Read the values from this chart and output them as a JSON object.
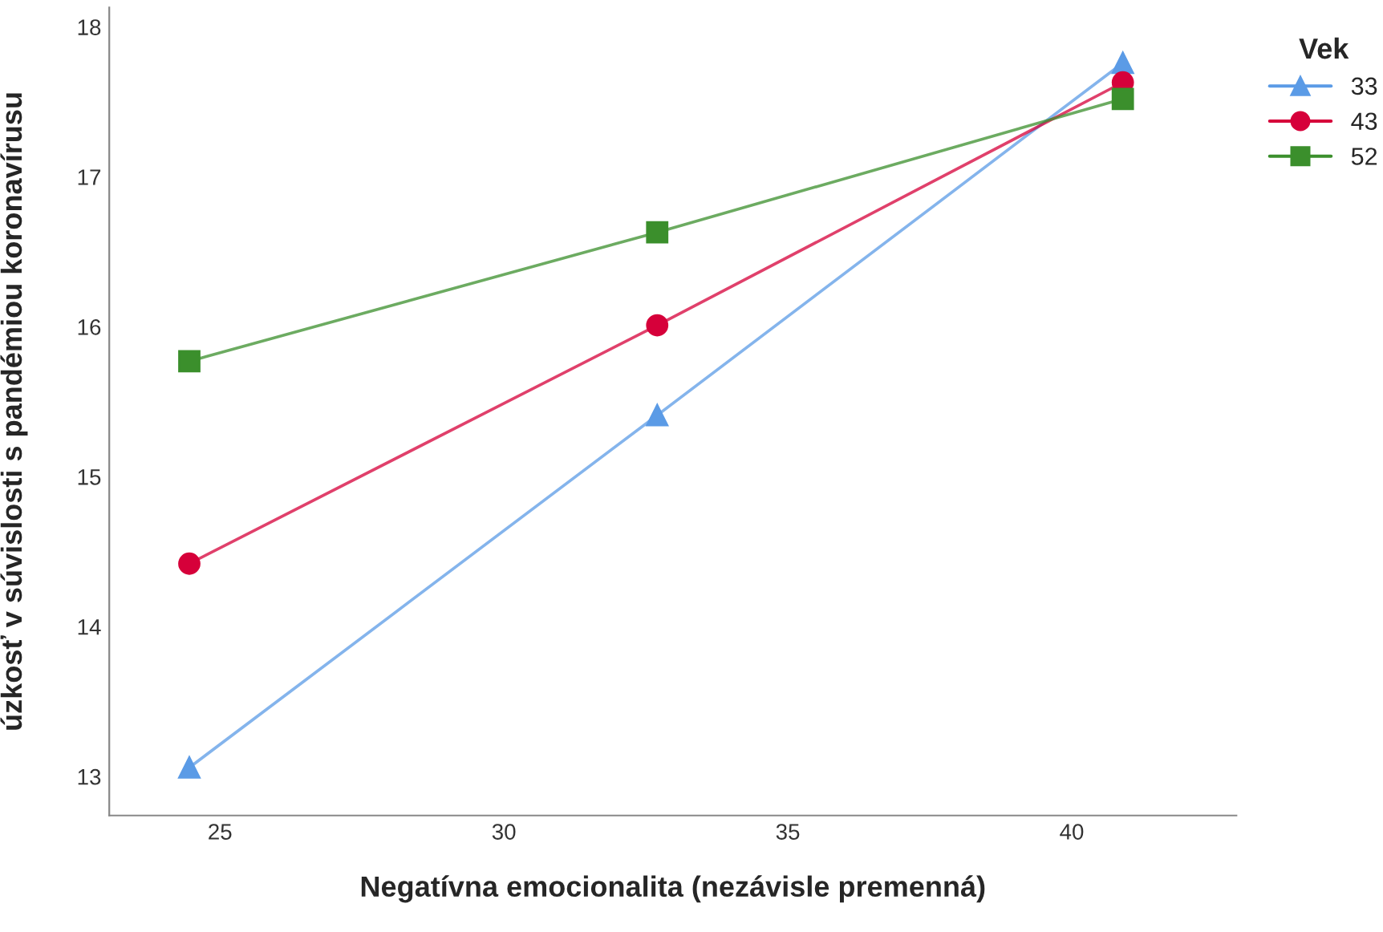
{
  "chart_data": {
    "type": "line",
    "xlabel": "Negatívna emocionalita (nezávisle premenná)",
    "ylabel": "úzkosť v súvislosti s pandémiou koronavírusu",
    "legend_title": "Vek",
    "legend": "top right",
    "xlim": [
      23.05,
      42.9
    ],
    "xticks": [
      25,
      30,
      35,
      40
    ],
    "ylim": [
      12.74,
      18.13
    ],
    "yticks": [
      13,
      14,
      15,
      16,
      17,
      18
    ],
    "grid": false,
    "line_style": "solid",
    "series": [
      {
        "name": "33",
        "color": "#5b9be6",
        "marker": "triangle",
        "x": [
          24.46,
          32.7,
          40.9
        ],
        "values": [
          13.06,
          15.41,
          17.76
        ]
      },
      {
        "name": "43",
        "color": "#d6003a",
        "marker": "circle",
        "x": [
          24.46,
          32.7,
          40.9
        ],
        "values": [
          14.42,
          16.01,
          17.63
        ]
      },
      {
        "name": "52",
        "color": "#3b8f2c",
        "marker": "square",
        "x": [
          24.46,
          32.7,
          40.9
        ],
        "values": [
          15.77,
          16.63,
          17.52
        ]
      }
    ]
  }
}
